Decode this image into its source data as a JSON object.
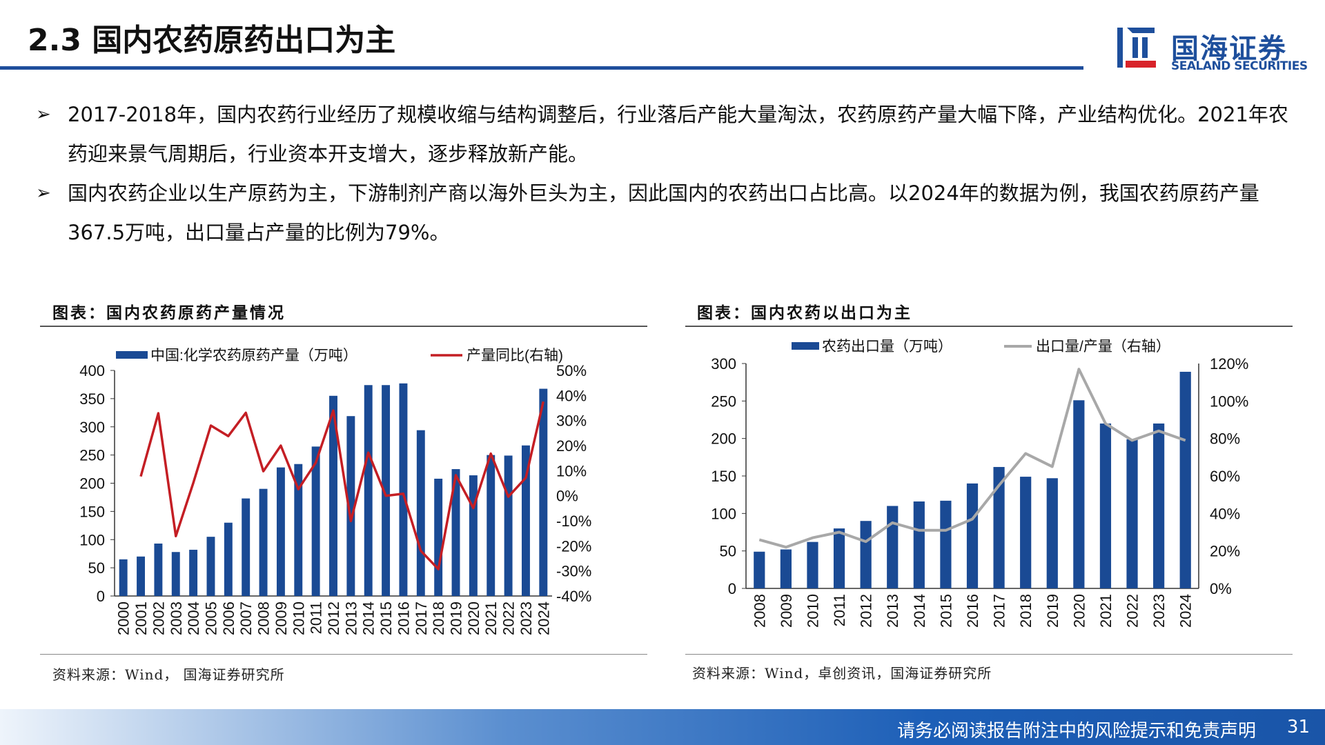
{
  "header": {
    "title": "2.3 国内农药原药出口为主",
    "logo_cn": "国海证券",
    "logo_en": "SEALAND SECURITIES"
  },
  "bullets": [
    {
      "icon": "arrow-bullet-icon",
      "text": "2017-2018年，国内农药行业经历了规模收缩与结构调整后，行业落后产能大量淘汰，农药原药产量大幅下降，产业结构优化。2021年农药迎来景气周期后，行业资本开支增大，逐步释放新产能。"
    },
    {
      "icon": "arrow-bullet-icon",
      "text": "国内农药企业以生产原药为主，下游制剂产商以海外巨头为主，因此国内的农药出口占比高。以2024年的数据为例，我国农药原药产量367.5万吨，出口量占产量的比例为79%。"
    }
  ],
  "panels": {
    "left_title": "图表：国内农药原药产量情况",
    "left_source": "资料来源：Wind， 国海证券研究所",
    "right_title": "图表：国内农药以出口为主",
    "right_source": "资料来源：Wind，卓创资讯，国海证券研究所"
  },
  "footer": {
    "disclaimer": "请务必阅读报告附注中的风险提示和免责声明",
    "page": "31"
  },
  "colors": {
    "bar": "#1a4a94",
    "line_red": "#c41e24",
    "line_gray": "#a8a8a8",
    "brand_blue": "#1f4e9c"
  },
  "chart_data": [
    {
      "type": "bar",
      "categories": [
        "2000",
        "2001",
        "2002",
        "2003",
        "2004",
        "2005",
        "2006",
        "2007",
        "2008",
        "2009",
        "2010",
        "2011",
        "2012",
        "2013",
        "2014",
        "2015",
        "2016",
        "2017",
        "2018",
        "2019",
        "2020",
        "2021",
        "2022",
        "2023",
        "2024"
      ],
      "series": [
        {
          "name": "中国:化学农药原药产量（万吨）",
          "type": "bar",
          "axis": "left",
          "values": [
            65,
            70,
            93,
            78,
            82,
            105,
            130,
            173,
            190,
            228,
            234,
            265,
            355,
            319,
            374,
            374,
            377,
            294,
            208,
            225,
            214,
            250,
            249,
            267,
            367.5
          ]
        },
        {
          "name": "产量同比(右轴)",
          "type": "line",
          "axis": "right",
          "values": [
            null,
            7.7,
            32.9,
            -16.1,
            5.1,
            28.0,
            23.8,
            33.1,
            9.8,
            20.0,
            2.6,
            13.2,
            34.0,
            -10.1,
            17.2,
            0.0,
            0.8,
            -22.0,
            -29.3,
            8.2,
            -4.9,
            16.8,
            -0.4,
            7.2,
            37.6
          ]
        }
      ],
      "ylim_left": [
        0,
        400
      ],
      "yticks_left": [
        "0",
        "50",
        "100",
        "150",
        "200",
        "250",
        "300",
        "350",
        "400"
      ],
      "ylim_right": [
        -40,
        50
      ],
      "yticks_right": [
        "-40%",
        "-30%",
        "-20%",
        "-10%",
        "0%",
        "10%",
        "20%",
        "30%",
        "40%",
        "50%"
      ],
      "legend_position": "top"
    },
    {
      "type": "bar",
      "categories": [
        "2008",
        "2009",
        "2010",
        "2011",
        "2012",
        "2013",
        "2014",
        "2015",
        "2016",
        "2017",
        "2018",
        "2019",
        "2020",
        "2021",
        "2022",
        "2023",
        "2024"
      ],
      "series": [
        {
          "name": "农药出口量（万吨）",
          "type": "bar",
          "axis": "left",
          "values": [
            49,
            52,
            62,
            80,
            90,
            110,
            116,
            117,
            140,
            162,
            149,
            147,
            251,
            220,
            199,
            220,
            289
          ]
        },
        {
          "name": "出口量/产量（右轴）",
          "type": "line",
          "axis": "right",
          "values": [
            26,
            22,
            27,
            30,
            25,
            35,
            31,
            31,
            37,
            55,
            72,
            65,
            117,
            88,
            79,
            84,
            79
          ]
        }
      ],
      "ylim_left": [
        0,
        300
      ],
      "yticks_left": [
        "0",
        "50",
        "100",
        "150",
        "200",
        "250",
        "300"
      ],
      "ylim_right": [
        0,
        120
      ],
      "yticks_right": [
        "0%",
        "20%",
        "40%",
        "60%",
        "80%",
        "100%",
        "120%"
      ],
      "legend_position": "top"
    }
  ]
}
